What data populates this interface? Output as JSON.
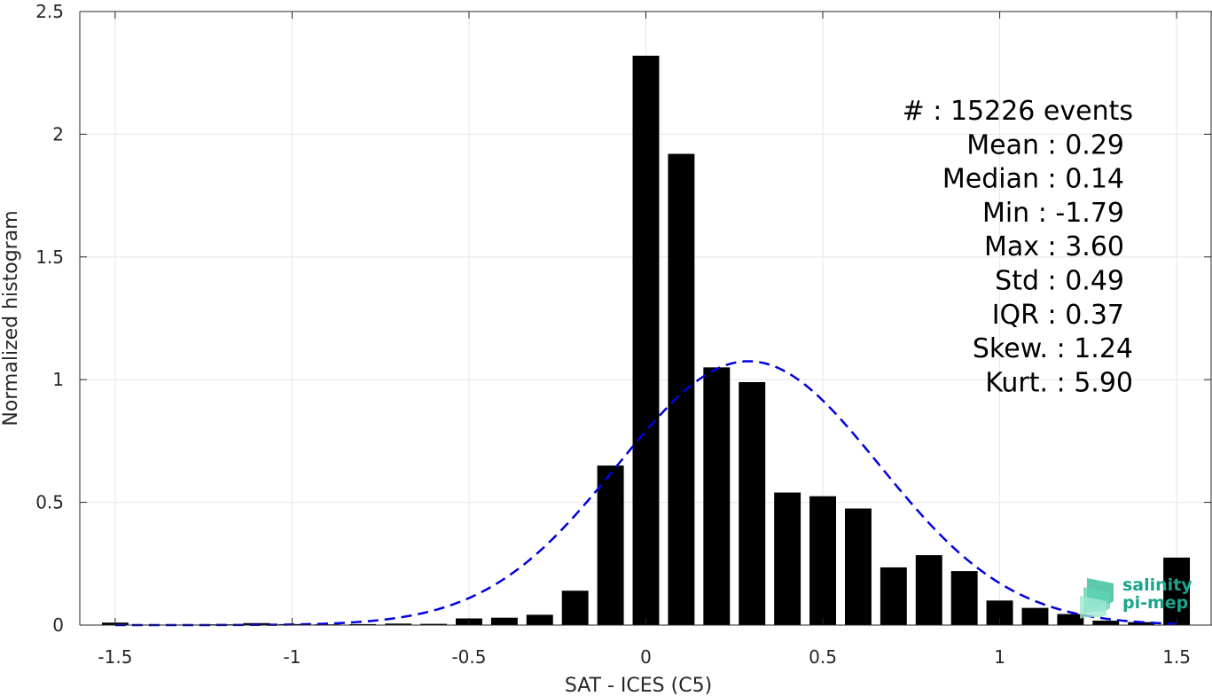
{
  "chart_data": {
    "type": "bar",
    "xlabel": "SAT - ICES (C5)",
    "ylabel": "Normalized histogram",
    "xlim": [
      -1.6,
      1.6
    ],
    "ylim": [
      0,
      2.5
    ],
    "x_ticks": [
      -1.5,
      -1,
      -0.5,
      0,
      0.5,
      1,
      1.5
    ],
    "x_tick_labels": [
      "-1.5",
      "-1",
      "-0.5",
      "0",
      "0.5",
      "1",
      "1.5"
    ],
    "y_ticks": [
      0,
      0.5,
      1,
      1.5,
      2,
      2.5
    ],
    "y_tick_labels": [
      "0",
      "0.5",
      "1",
      "1.5",
      "2",
      "2.5"
    ],
    "grid": true,
    "bar_width": 0.075,
    "x": [
      -1.5,
      -1.4,
      -1.3,
      -1.2,
      -1.1,
      -1.0,
      -0.9,
      -0.8,
      -0.7,
      -0.6,
      -0.5,
      -0.4,
      -0.3,
      -0.2,
      -0.1,
      0.0,
      0.1,
      0.2,
      0.3,
      0.4,
      0.5,
      0.6,
      0.7,
      0.8,
      0.9,
      1.0,
      1.1,
      1.2,
      1.3,
      1.4,
      1.5
    ],
    "values": [
      0.01,
      0.002,
      0.002,
      0.003,
      0.008,
      0.004,
      0.003,
      0.004,
      0.006,
      0.005,
      0.027,
      0.03,
      0.042,
      0.14,
      0.65,
      2.32,
      1.92,
      1.05,
      0.99,
      0.54,
      0.525,
      0.475,
      0.235,
      0.285,
      0.22,
      0.1,
      0.07,
      0.045,
      0.018,
      0.012,
      0.275
    ],
    "fit_curve": {
      "style": "dashed",
      "color": "#0000e0",
      "mean": 0.29,
      "std": 0.37,
      "peak": 1.075
    },
    "stats": [
      {
        "name": "#",
        "sep": " : ",
        "value": "15226 events"
      },
      {
        "name": "Mean",
        "sep": " : ",
        "value": "0.29"
      },
      {
        "name": "Median",
        "sep": " : ",
        "value": "0.14"
      },
      {
        "name": "Min",
        "sep": " : ",
        "value": "-1.79"
      },
      {
        "name": "Max",
        "sep": " : ",
        "value": "3.60"
      },
      {
        "name": "Std",
        "sep": " : ",
        "value": "0.49"
      },
      {
        "name": "IQR",
        "sep": " : ",
        "value": "0.37"
      },
      {
        "name": "Skew.",
        "sep": " : ",
        "value": "1.24"
      },
      {
        "name": "Kurt.",
        "sep": " : ",
        "value": "5.90"
      }
    ],
    "stats_placement": "top-right",
    "bar_color": "#000000"
  },
  "logo": {
    "line1": "salinity",
    "line2": "pi-mep",
    "color": "#1aa58c"
  }
}
